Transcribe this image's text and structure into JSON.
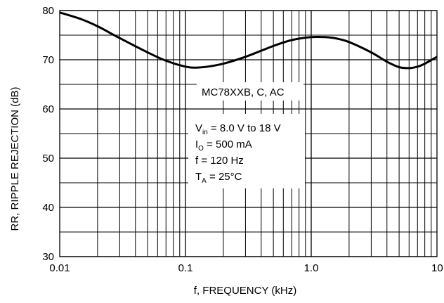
{
  "chart_data": {
    "type": "line",
    "xscale": "log",
    "xlim": [
      0.01,
      10
    ],
    "ylim": [
      30,
      80
    ],
    "grid": true,
    "xlabel": "f, FREQUENCY (kHz)",
    "ylabel": "RR, RIPPLE REJECTION (dB)",
    "x_tick_labels": [
      "0.01",
      "0.1",
      "1.0",
      "10"
    ],
    "y_tick_labels": [
      "30",
      "40",
      "50",
      "60",
      "70",
      "80"
    ],
    "series": [
      {
        "x": [
          0.01,
          0.015,
          0.02,
          0.03,
          0.05,
          0.07,
          0.1,
          0.12,
          0.15,
          0.2,
          0.3,
          0.5,
          0.7,
          1.0,
          1.3,
          1.6,
          2.0,
          3.0,
          4.0,
          5.0,
          6.0,
          7.0,
          8.0,
          10.0
        ],
        "y": [
          79.6,
          78.2,
          76.8,
          74.4,
          71.5,
          69.8,
          68.6,
          68.4,
          68.6,
          69.2,
          70.6,
          72.8,
          74.0,
          74.6,
          74.6,
          74.3,
          73.6,
          71.5,
          69.6,
          68.5,
          68.3,
          68.6,
          69.2,
          70.6
        ]
      }
    ],
    "annotation": {
      "title": "MC78XXB, C, AC",
      "lines": [
        {
          "main": "V",
          "sub": "in",
          "rest": " = 8.0 V to 18 V"
        },
        {
          "main": "I",
          "sub": "O",
          "rest": " = 500 mA"
        },
        {
          "main": "f = 120 Hz",
          "sub": "",
          "rest": ""
        },
        {
          "main": "T",
          "sub": "A",
          "rest": " = 25°C"
        }
      ]
    }
  }
}
